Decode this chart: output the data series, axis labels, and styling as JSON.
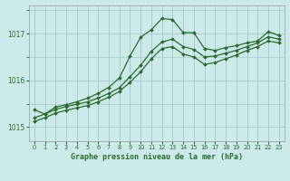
{
  "title": "Graphe pression niveau de la mer (hPa)",
  "bg_color": "#cceaea",
  "grid_color": "#aacccc",
  "line_color": "#2d6b2d",
  "xlim": [
    -0.5,
    23.5
  ],
  "ylim": [
    1014.7,
    1017.6
  ],
  "yticks": [
    1015,
    1016,
    1017
  ],
  "xticks": [
    0,
    1,
    2,
    3,
    4,
    5,
    6,
    7,
    8,
    9,
    10,
    11,
    12,
    13,
    14,
    15,
    16,
    17,
    18,
    19,
    20,
    21,
    22,
    23
  ],
  "series1_x": [
    0,
    1,
    2,
    3,
    4,
    5,
    6,
    7,
    8,
    9,
    10,
    11,
    12,
    13,
    14,
    15,
    16,
    17,
    18,
    19,
    20,
    21,
    22,
    23
  ],
  "series1_y": [
    1015.37,
    1015.28,
    1015.43,
    1015.48,
    1015.54,
    1015.62,
    1015.72,
    1015.85,
    1016.05,
    1016.52,
    1016.92,
    1017.08,
    1017.32,
    1017.3,
    1017.02,
    1017.02,
    1016.68,
    1016.64,
    1016.7,
    1016.74,
    1016.8,
    1016.84,
    1017.04,
    1016.96
  ],
  "series2_x": [
    0,
    1,
    2,
    3,
    4,
    5,
    6,
    7,
    8,
    9,
    10,
    11,
    12,
    13,
    14,
    15,
    16,
    17,
    18,
    19,
    20,
    21,
    22,
    23
  ],
  "series2_y": [
    1015.2,
    1015.28,
    1015.38,
    1015.44,
    1015.49,
    1015.54,
    1015.62,
    1015.72,
    1015.84,
    1016.08,
    1016.32,
    1016.62,
    1016.82,
    1016.88,
    1016.72,
    1016.66,
    1016.5,
    1016.52,
    1016.58,
    1016.64,
    1016.72,
    1016.8,
    1016.93,
    1016.88
  ],
  "series3_x": [
    0,
    1,
    2,
    3,
    4,
    5,
    6,
    7,
    8,
    9,
    10,
    11,
    12,
    13,
    14,
    15,
    16,
    17,
    18,
    19,
    20,
    21,
    22,
    23
  ],
  "series3_y": [
    1015.12,
    1015.2,
    1015.3,
    1015.36,
    1015.41,
    1015.46,
    1015.54,
    1015.64,
    1015.76,
    1015.96,
    1016.18,
    1016.46,
    1016.68,
    1016.72,
    1016.56,
    1016.5,
    1016.34,
    1016.38,
    1016.46,
    1016.54,
    1016.64,
    1016.72,
    1016.84,
    1016.8
  ]
}
